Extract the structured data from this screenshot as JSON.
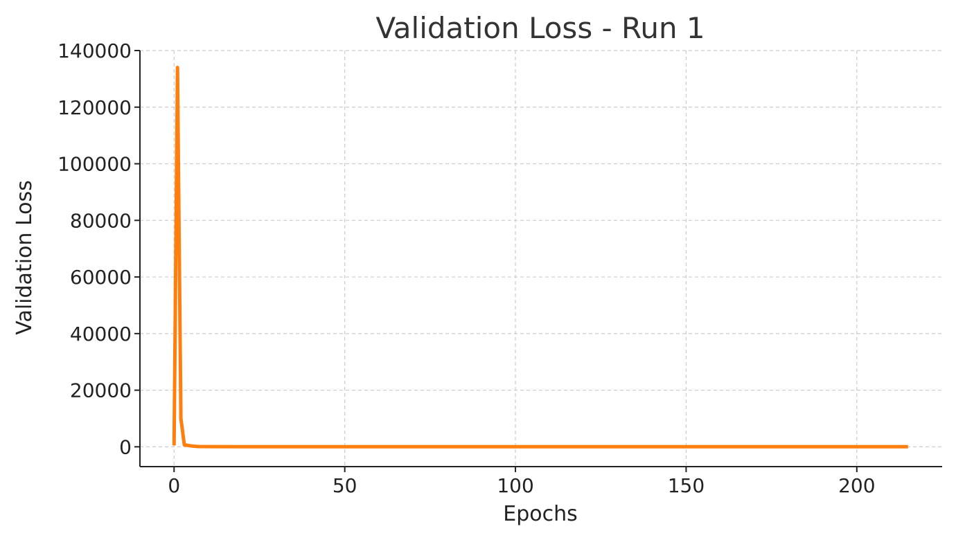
{
  "chart_data": {
    "type": "line",
    "title": "Validation Loss - Run 1",
    "xlabel": "Epochs",
    "ylabel": "Validation Loss",
    "xlim": [
      -10,
      225
    ],
    "ylim": [
      -7000,
      140000
    ],
    "x_ticks": [
      0,
      50,
      100,
      150,
      200
    ],
    "y_ticks": [
      0,
      20000,
      40000,
      60000,
      80000,
      100000,
      120000,
      140000
    ],
    "grid": true,
    "legend": "none",
    "series": [
      {
        "color": "#ff7f0e",
        "x": [
          0,
          1,
          2,
          3,
          5,
          7,
          10,
          20,
          50,
          100,
          150,
          200,
          215
        ],
        "y": [
          500,
          134000,
          10000,
          700,
          300,
          100,
          50,
          30,
          25,
          20,
          20,
          20,
          20
        ]
      }
    ]
  }
}
